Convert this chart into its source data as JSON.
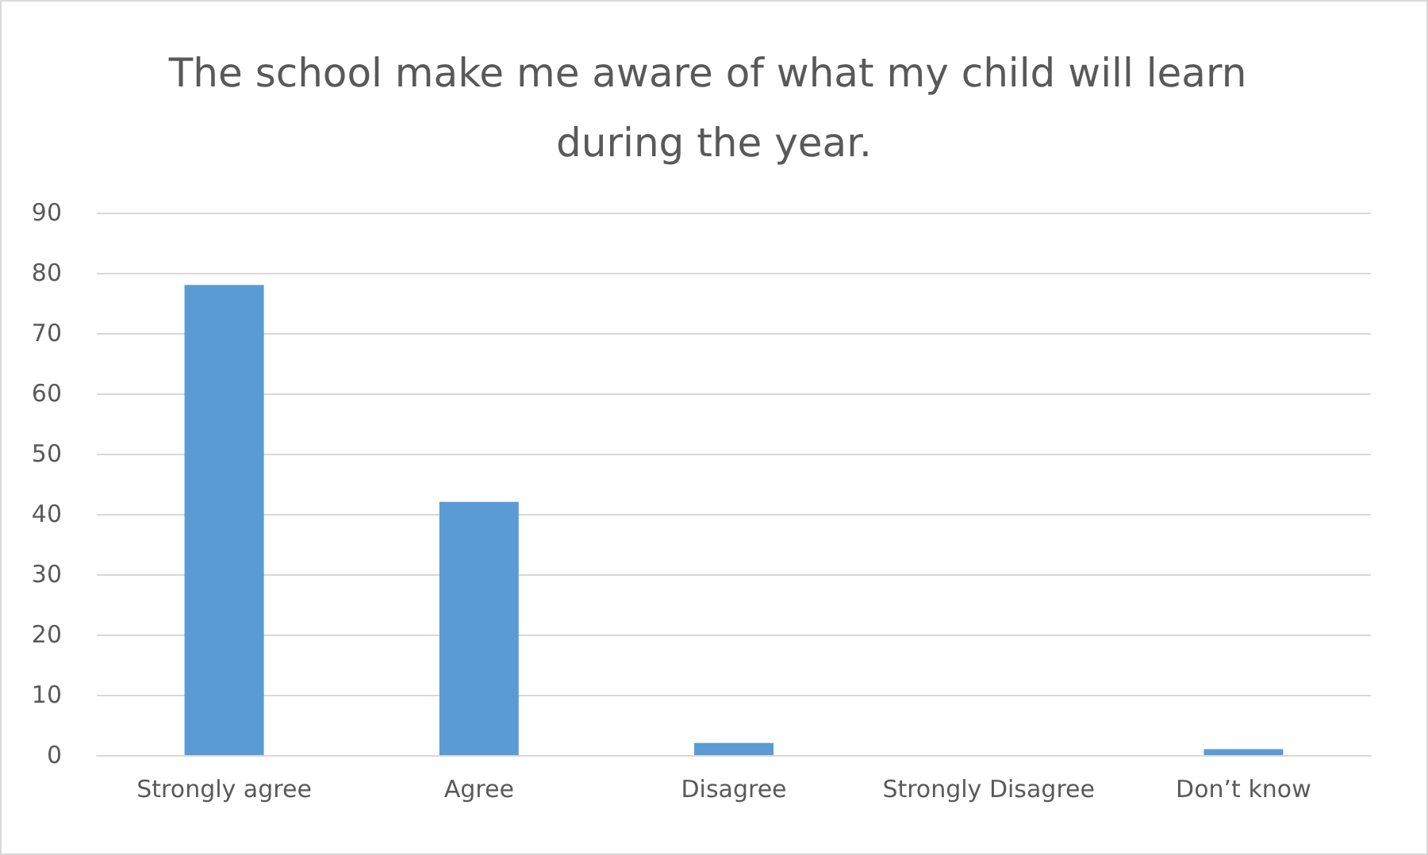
{
  "chart_data": {
    "type": "bar",
    "title": "The school make me aware of what my child will learn during the year.",
    "categories": [
      "Strongly agree",
      "Agree",
      "Disagree",
      "Strongly Disagree",
      "Don’t know"
    ],
    "values": [
      78,
      42,
      2,
      0,
      1
    ],
    "color": "#5b9bd5",
    "ylim": [
      0,
      90
    ],
    "yticks": [
      0,
      10,
      20,
      30,
      40,
      50,
      60,
      70,
      80,
      90
    ],
    "grid": "y"
  }
}
